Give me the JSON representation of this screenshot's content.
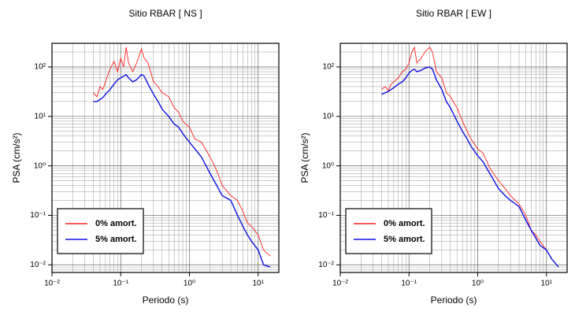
{
  "chart_data": [
    {
      "type": "line",
      "title": "Sitio RBAR [ NS ]",
      "xlabel": "Periodo (s)",
      "ylabel": "PSA (cm/s²)",
      "xscale": "log",
      "yscale": "log",
      "grid": true,
      "legend": "lower left",
      "xlim": [
        0.01,
        20
      ],
      "ylim": [
        0.007,
        300
      ],
      "xticks": [
        {
          "value": 0.01,
          "label": "10⁻²"
        },
        {
          "value": 0.1,
          "label": "10⁻¹"
        },
        {
          "value": 1,
          "label": "10⁰"
        },
        {
          "value": 10,
          "label": "10¹"
        }
      ],
      "yticks": [
        {
          "value": 0.01,
          "label": "10⁻²"
        },
        {
          "value": 0.1,
          "label": "10⁻¹"
        },
        {
          "value": 1,
          "label": "10⁰"
        },
        {
          "value": 10,
          "label": "10¹"
        },
        {
          "value": 100,
          "label": "10²"
        }
      ],
      "x": [
        0.04,
        0.045,
        0.05,
        0.055,
        0.06,
        0.07,
        0.08,
        0.09,
        0.1,
        0.11,
        0.12,
        0.13,
        0.15,
        0.17,
        0.2,
        0.22,
        0.25,
        0.3,
        0.35,
        0.4,
        0.5,
        0.6,
        0.7,
        0.8,
        1.0,
        1.2,
        1.5,
        2,
        2.5,
        3,
        4,
        5,
        6,
        7,
        8,
        10,
        12,
        15
      ],
      "series": [
        {
          "name": "0% amort.",
          "color": "#ff2020",
          "values": [
            30,
            25,
            40,
            35,
            50,
            90,
            130,
            80,
            150,
            100,
            250,
            120,
            80,
            120,
            230,
            150,
            120,
            50,
            40,
            30,
            25,
            15,
            12,
            8,
            6,
            3.5,
            3,
            1.5,
            0.8,
            0.4,
            0.25,
            0.2,
            0.12,
            0.07,
            0.06,
            0.04,
            0.02,
            0.015
          ]
        },
        {
          "name": "5% amort.",
          "color": "#1010e0",
          "values": [
            20,
            20,
            22,
            24,
            28,
            35,
            45,
            55,
            60,
            65,
            70,
            60,
            50,
            55,
            70,
            65,
            45,
            28,
            20,
            14,
            10,
            7,
            6,
            4.5,
            3,
            2.2,
            1.5,
            0.7,
            0.4,
            0.25,
            0.2,
            0.1,
            0.06,
            0.04,
            0.03,
            0.02,
            0.01,
            0.009
          ]
        }
      ]
    },
    {
      "type": "line",
      "title": "Sitio RBAR [ EW ]",
      "xlabel": "Periodo (s)",
      "ylabel": "PSA (cm/s²)",
      "xscale": "log",
      "yscale": "log",
      "grid": true,
      "legend": "lower left",
      "xlim": [
        0.01,
        20
      ],
      "ylim": [
        0.007,
        300
      ],
      "xticks": [
        {
          "value": 0.01,
          "label": "10⁻²"
        },
        {
          "value": 0.1,
          "label": "10⁻¹"
        },
        {
          "value": 1,
          "label": "10⁰"
        },
        {
          "value": 10,
          "label": "10¹"
        }
      ],
      "yticks": [
        {
          "value": 0.01,
          "label": "10⁻²"
        },
        {
          "value": 0.1,
          "label": "10⁻¹"
        },
        {
          "value": 1,
          "label": "10⁰"
        },
        {
          "value": 10,
          "label": "10¹"
        },
        {
          "value": 100,
          "label": "10²"
        }
      ],
      "x": [
        0.04,
        0.045,
        0.05,
        0.055,
        0.06,
        0.07,
        0.08,
        0.09,
        0.1,
        0.11,
        0.12,
        0.13,
        0.15,
        0.17,
        0.2,
        0.22,
        0.25,
        0.3,
        0.35,
        0.4,
        0.5,
        0.6,
        0.7,
        0.8,
        1.0,
        1.2,
        1.5,
        2,
        2.5,
        3,
        4,
        5,
        6,
        7,
        8,
        10,
        12,
        15
      ],
      "series": [
        {
          "name": "0% amort.",
          "color": "#ff2020",
          "values": [
            35,
            40,
            33,
            45,
            50,
            60,
            80,
            90,
            120,
            200,
            250,
            120,
            150,
            200,
            250,
            200,
            80,
            60,
            30,
            25,
            15,
            8,
            5,
            3.5,
            2.2,
            1.8,
            0.9,
            0.5,
            0.35,
            0.25,
            0.17,
            0.1,
            0.05,
            0.04,
            0.03,
            0.02,
            0.013,
            0.009
          ]
        },
        {
          "name": "5% amort.",
          "color": "#1010e0",
          "values": [
            28,
            30,
            32,
            35,
            38,
            45,
            50,
            60,
            75,
            85,
            90,
            80,
            85,
            95,
            100,
            90,
            55,
            35,
            20,
            15,
            8,
            5,
            3.5,
            2.5,
            1.6,
            1.2,
            0.7,
            0.35,
            0.25,
            0.2,
            0.15,
            0.08,
            0.05,
            0.035,
            0.025,
            0.02,
            0.013,
            0.009
          ]
        }
      ]
    }
  ]
}
